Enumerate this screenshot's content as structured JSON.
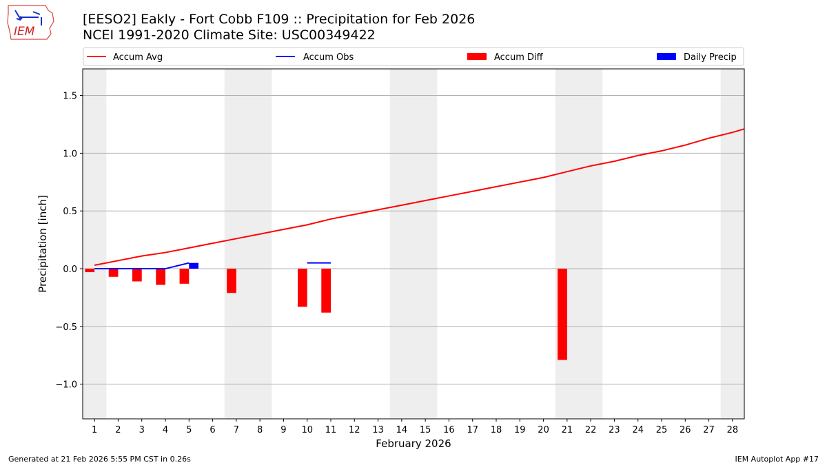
{
  "header": {
    "title_line1": "[EESO2] Eakly - Fort Cobb F109 :: Precipitation for Feb 2026",
    "title_line2": "NCEI 1991-2020 Climate Site: USC00349422"
  },
  "logo": {
    "text": "IEM"
  },
  "footer": {
    "generated": "Generated at 21 Feb 2026 5:55 PM CST in 0.26s",
    "app": "IEM Autoplot App #17"
  },
  "colors": {
    "accum_avg": "#ff0000",
    "accum_obs": "#0000ff",
    "accum_diff": "#ff0000",
    "daily_precip": "#0000ff",
    "weekend_band": "#eeeeee",
    "grid": "#b0b0b0"
  },
  "chart_data": {
    "type": "bar",
    "xlabel": "February 2026",
    "ylabel": "Precipitation [inch]",
    "xlim": [
      0.5,
      28.5
    ],
    "ylim": [
      -1.3,
      1.73
    ],
    "x_ticks": [
      1,
      2,
      3,
      4,
      5,
      6,
      7,
      8,
      9,
      10,
      11,
      12,
      13,
      14,
      15,
      16,
      17,
      18,
      19,
      20,
      21,
      22,
      23,
      24,
      25,
      26,
      27,
      28
    ],
    "y_ticks": [
      -1.0,
      -0.5,
      0.0,
      0.5,
      1.0,
      1.5
    ],
    "y_tick_labels": [
      "−1.0",
      "−0.5",
      "0.0",
      "0.5",
      "1.0",
      "1.5"
    ],
    "grid": "horizontal",
    "weekend_bands": [
      [
        0.5,
        1.5
      ],
      [
        6.5,
        8.5
      ],
      [
        13.5,
        15.5
      ],
      [
        20.5,
        22.5
      ],
      [
        27.5,
        28.5
      ]
    ],
    "legend": [
      {
        "label": "Accum Avg",
        "kind": "line",
        "color": "#ff0000"
      },
      {
        "label": "Accum Obs",
        "kind": "line",
        "color": "#0000ff"
      },
      {
        "label": "Accum Diff",
        "kind": "bar",
        "color": "#ff0000"
      },
      {
        "label": "Daily Precip",
        "kind": "bar",
        "color": "#0000ff"
      }
    ],
    "series": [
      {
        "name": "Accum Avg",
        "kind": "line",
        "x": [
          1,
          2,
          3,
          4,
          5,
          6,
          7,
          8,
          9,
          10,
          11,
          12,
          13,
          14,
          15,
          16,
          17,
          18,
          19,
          20,
          21,
          22,
          23,
          24,
          25,
          26,
          27,
          28,
          28.5
        ],
        "values": [
          0.03,
          0.07,
          0.11,
          0.14,
          0.18,
          0.22,
          0.26,
          0.3,
          0.34,
          0.38,
          0.43,
          0.47,
          0.51,
          0.55,
          0.59,
          0.63,
          0.67,
          0.71,
          0.75,
          0.79,
          0.84,
          0.89,
          0.93,
          0.98,
          1.02,
          1.07,
          1.13,
          1.18,
          1.21
        ]
      },
      {
        "name": "Accum Obs",
        "kind": "line",
        "segments": [
          {
            "x": [
              1,
              2,
              3,
              4,
              5
            ],
            "values": [
              0.0,
              0.0,
              0.0,
              0.0,
              0.05
            ]
          },
          {
            "x": [
              10,
              11
            ],
            "values": [
              0.05,
              0.05
            ]
          }
        ]
      },
      {
        "name": "Accum Diff",
        "kind": "bar",
        "offset": -0.2,
        "x": [
          1,
          2,
          3,
          4,
          5,
          7,
          10,
          11,
          21
        ],
        "values": [
          -0.03,
          -0.07,
          -0.11,
          -0.14,
          -0.13,
          -0.21,
          -0.33,
          -0.38,
          -0.79
        ]
      },
      {
        "name": "Daily Precip",
        "kind": "bar",
        "offset": 0.2,
        "x": [
          5
        ],
        "values": [
          0.05
        ]
      }
    ]
  }
}
